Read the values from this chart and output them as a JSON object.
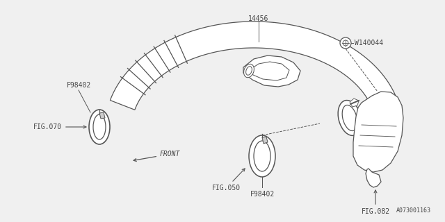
{
  "background_color": "#f0f0f0",
  "line_color": "#555555",
  "text_color": "#444444",
  "labels": {
    "part_number": "14456",
    "clamp1": "F98402",
    "clamp2": "F98402",
    "fig070": "FIG.070",
    "fig050": "FIG.050",
    "fig082": "FIG.082",
    "w140044": "W140044",
    "front": "FRONT",
    "diagram_id": "A073001163"
  }
}
